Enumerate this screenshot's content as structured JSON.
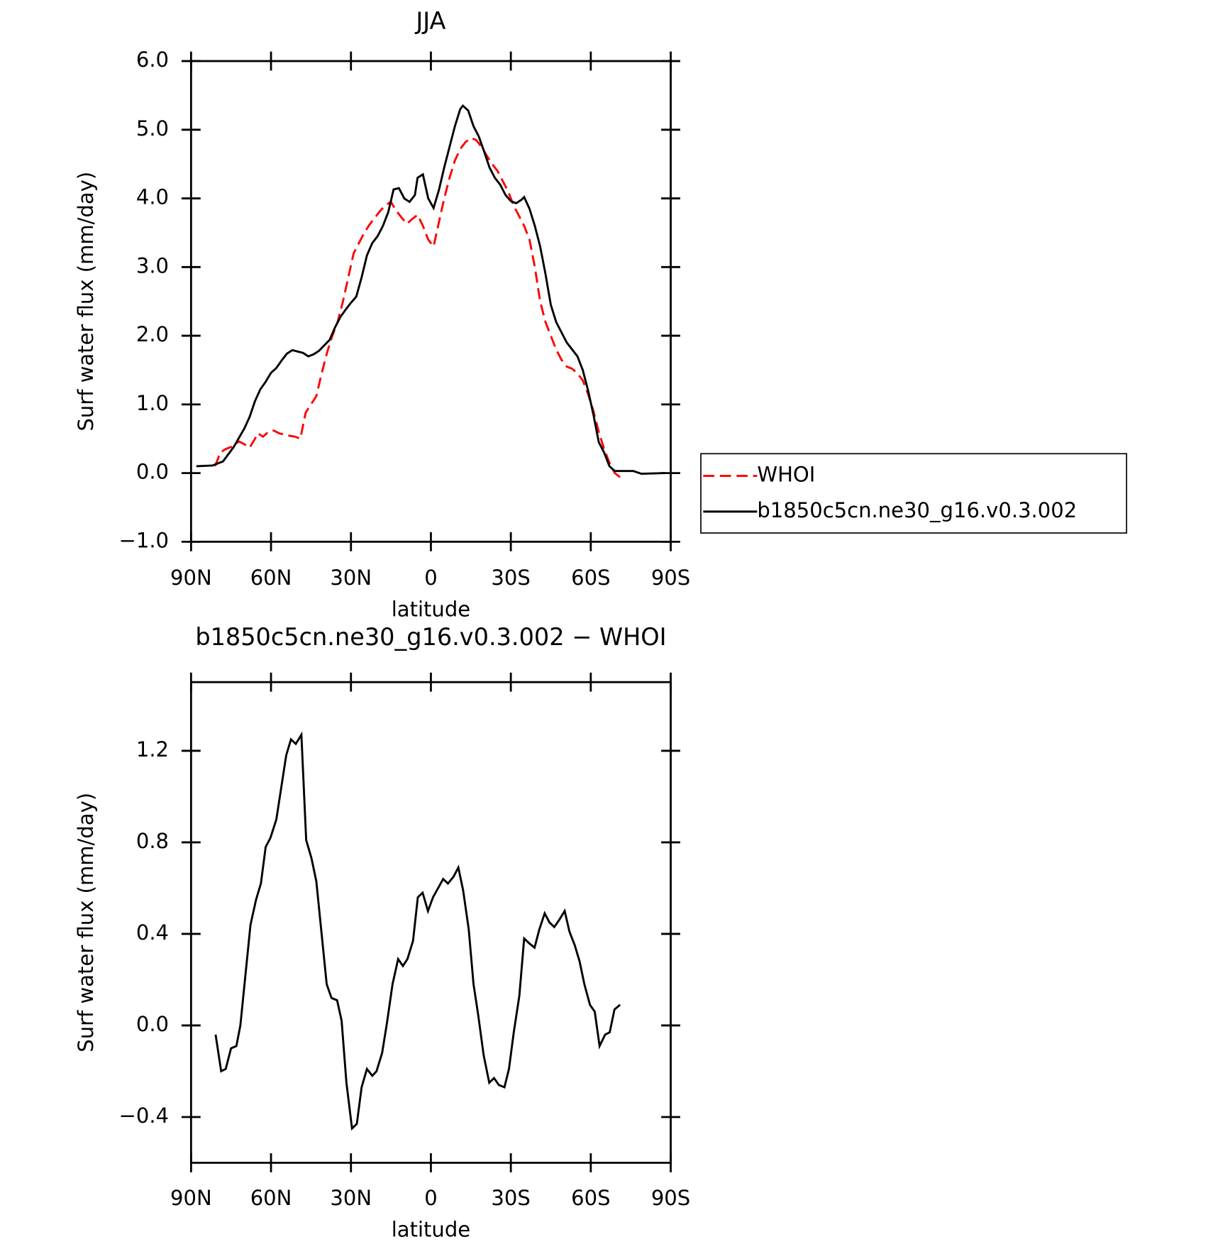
{
  "chart_data": [
    {
      "type": "line",
      "title": "JJA",
      "x_label": "latitude",
      "y_label": "Surf water flux (mm/day)",
      "xlim": [
        90,
        -90
      ],
      "xticks": [
        {
          "value": 90,
          "label": "90N"
        },
        {
          "value": 60,
          "label": "60N"
        },
        {
          "value": 30,
          "label": "30N"
        },
        0,
        {
          "value": -30,
          "label": "30S"
        },
        {
          "value": -60,
          "label": "60S"
        },
        {
          "value": -90,
          "label": "90S"
        }
      ],
      "ylim": [
        -1,
        6
      ],
      "yticks": [
        {
          "value": -1,
          "label": "−1.0"
        },
        {
          "value": 0,
          "label": "0.0"
        },
        {
          "value": 1,
          "label": "1.0"
        },
        {
          "value": 2,
          "label": "2.0"
        },
        {
          "value": 3,
          "label": "3.0"
        },
        {
          "value": 4,
          "label": "4.0"
        },
        {
          "value": 5,
          "label": "5.0"
        },
        {
          "value": 6,
          "label": "6.0"
        }
      ],
      "legend": "right",
      "series": [
        {
          "name": "WHOI",
          "color": "#ff0000",
          "dash": "dashed",
          "x": [
            81,
            79,
            77,
            75,
            72,
            70,
            68,
            66,
            65,
            63,
            61,
            59,
            57,
            54,
            51,
            49,
            47,
            45,
            43,
            41,
            39,
            37,
            35,
            33,
            31,
            29,
            27,
            25,
            23,
            21,
            19,
            17,
            15,
            13,
            11,
            9,
            7,
            5,
            3,
            1,
            -1,
            -3,
            -5,
            -7,
            -9,
            -11,
            -13,
            -15,
            -17,
            -19,
            -21,
            -23,
            -25,
            -27,
            -29,
            -31,
            -33,
            -35,
            -37,
            -39,
            -41,
            -43,
            -45,
            -47,
            -49,
            -51,
            -53,
            -55,
            -57,
            -59,
            -61,
            -63,
            -65,
            -67,
            -69,
            -71
          ],
          "values": [
            0.1,
            0.3,
            0.35,
            0.38,
            0.46,
            0.42,
            0.37,
            0.5,
            0.58,
            0.53,
            0.6,
            0.62,
            0.58,
            0.55,
            0.53,
            0.5,
            0.88,
            1.0,
            1.12,
            1.45,
            1.75,
            2.0,
            2.2,
            2.5,
            2.85,
            3.2,
            3.35,
            3.5,
            3.62,
            3.72,
            3.82,
            3.9,
            3.95,
            3.82,
            3.72,
            3.63,
            3.7,
            3.76,
            3.6,
            3.4,
            3.3,
            3.65,
            4.0,
            4.3,
            4.55,
            4.72,
            4.82,
            4.88,
            4.85,
            4.75,
            4.62,
            4.5,
            4.4,
            4.25,
            4.1,
            3.9,
            3.75,
            3.6,
            3.4,
            3.0,
            2.5,
            2.2,
            2.0,
            1.8,
            1.65,
            1.55,
            1.52,
            1.45,
            1.35,
            1.15,
            0.9,
            0.6,
            0.35,
            0.15,
            0.0,
            -0.06
          ]
        },
        {
          "name": "b1850c5cn.ne30_g16.v0.3.002",
          "color": "#000000",
          "dash": "solid",
          "x": [
            88,
            82,
            78,
            74,
            70,
            68,
            66,
            64,
            62,
            60,
            58,
            56,
            54,
            52,
            50,
            48,
            46,
            44,
            42,
            40,
            38,
            36,
            34,
            32,
            30,
            28,
            26,
            24,
            22,
            20,
            18,
            16,
            14,
            12,
            10,
            8,
            6,
            5,
            3,
            1,
            -1,
            -3,
            -5,
            -7,
            -9,
            -11,
            -12,
            -14,
            -16,
            -18,
            -20,
            -22,
            -24,
            -26,
            -28,
            -30,
            -32,
            -34,
            -35,
            -37,
            -39,
            -41,
            -43,
            -45,
            -47,
            -49,
            -51,
            -53,
            -55,
            -57,
            -59,
            -61,
            -63,
            -65,
            -67,
            -69,
            -76,
            -79,
            -88
          ],
          "values": [
            0.1,
            0.11,
            0.17,
            0.38,
            0.65,
            0.82,
            1.05,
            1.22,
            1.33,
            1.46,
            1.53,
            1.64,
            1.74,
            1.79,
            1.77,
            1.75,
            1.7,
            1.73,
            1.78,
            1.86,
            1.94,
            2.12,
            2.27,
            2.38,
            2.48,
            2.57,
            2.85,
            3.17,
            3.35,
            3.45,
            3.6,
            3.8,
            4.13,
            4.15,
            4.0,
            3.95,
            4.05,
            4.3,
            4.35,
            4.0,
            3.86,
            4.12,
            4.45,
            4.75,
            5.05,
            5.3,
            5.35,
            5.28,
            5.05,
            4.9,
            4.68,
            4.45,
            4.3,
            4.2,
            4.05,
            3.96,
            3.93,
            3.98,
            4.02,
            3.85,
            3.6,
            3.3,
            2.9,
            2.45,
            2.2,
            2.05,
            1.9,
            1.8,
            1.7,
            1.5,
            1.2,
            0.85,
            0.45,
            0.3,
            0.1,
            0.03,
            0.03,
            -0.01,
            0.0
          ]
        }
      ]
    },
    {
      "type": "line",
      "title": "b1850c5cn.ne30_g16.v0.3.002 − WHOI",
      "x_label": "latitude",
      "y_label": "Surf water flux (mm/day)",
      "xlim": [
        90,
        -90
      ],
      "xticks": [
        {
          "value": 90,
          "label": "90N"
        },
        {
          "value": 60,
          "label": "60N"
        },
        {
          "value": 30,
          "label": "30N"
        },
        0,
        {
          "value": -30,
          "label": "30S"
        },
        {
          "value": -60,
          "label": "60S"
        },
        {
          "value": -90,
          "label": "90S"
        }
      ],
      "ylim": [
        -0.6,
        1.5
      ],
      "yticks": [
        {
          "value": -0.4,
          "label": "−0.4"
        },
        {
          "value": 0,
          "label": "0.0"
        },
        0.4,
        0.8,
        1.2
      ],
      "series": [
        {
          "color": "#000000",
          "dash": "solid",
          "x": [
            80.8,
            78.7,
            77,
            75,
            73,
            71.5,
            67.7,
            65.6,
            63.8,
            62,
            60.2,
            58,
            54.3,
            52.5,
            50.7,
            48.6,
            46.8,
            44.8,
            43,
            39.1,
            37.3,
            35.2,
            33.5,
            31.7,
            29.6,
            27.8,
            26,
            24,
            22,
            20.4,
            18.3,
            16.5,
            14.4,
            12.3,
            10.5,
            8.8,
            6.7,
            4.9,
            3.1,
            1.1,
            -0.8,
            -4.6,
            -6.4,
            -8.5,
            -10.3,
            -12.1,
            -14.2,
            -16,
            -17.7,
            -19.8,
            -21.9,
            -23.7,
            -25.5,
            -27.6,
            -29.3,
            -31.1,
            -33.2,
            -35,
            -36.8,
            -38.9,
            -40.7,
            -42.7,
            -44.5,
            -46.3,
            -48.1,
            -50.2,
            -52,
            -54,
            -55.8,
            -57.6,
            -59.7,
            -61.5,
            -63.3,
            -65.4,
            -67.1,
            -68.9,
            -71
          ],
          "values": [
            -0.04,
            -0.2,
            -0.19,
            -0.1,
            -0.09,
            0.0,
            0.44,
            0.55,
            0.62,
            0.78,
            0.82,
            0.9,
            1.18,
            1.25,
            1.23,
            1.27,
            0.81,
            0.73,
            0.63,
            0.18,
            0.12,
            0.11,
            0.02,
            -0.25,
            -0.45,
            -0.43,
            -0.27,
            -0.19,
            -0.22,
            -0.2,
            -0.12,
            0.01,
            0.18,
            0.29,
            0.26,
            0.29,
            0.37,
            0.56,
            0.58,
            0.5,
            0.56,
            0.64,
            0.62,
            0.65,
            0.69,
            0.59,
            0.42,
            0.18,
            0.05,
            -0.13,
            -0.25,
            -0.23,
            -0.26,
            -0.27,
            -0.19,
            -0.03,
            0.13,
            0.38,
            0.36,
            0.34,
            0.42,
            0.49,
            0.45,
            0.43,
            0.46,
            0.5,
            0.41,
            0.35,
            0.28,
            0.18,
            0.09,
            0.06,
            -0.09,
            -0.04,
            -0.03,
            0.07,
            0.09
          ]
        }
      ]
    }
  ]
}
